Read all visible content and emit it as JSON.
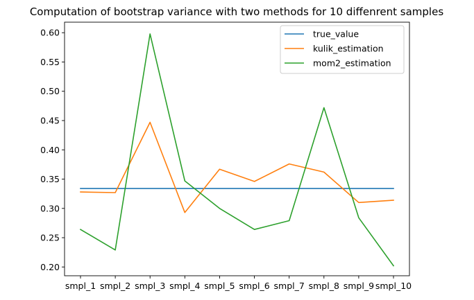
{
  "chart_data": {
    "type": "line",
    "title": "Computation of bootstrap variance with two methods for 10 diffenrent samples",
    "xlabel": "",
    "ylabel": "",
    "categories": [
      "smpl_1",
      "smpl_2",
      "smpl_3",
      "smpl_4",
      "smpl_5",
      "smpl_6",
      "smpl_7",
      "smpl_8",
      "smpl_9",
      "smpl_10"
    ],
    "ylim": [
      0.185,
      0.618
    ],
    "yticks": [
      0.2,
      0.25,
      0.3,
      0.35,
      0.4,
      0.45,
      0.5,
      0.55,
      0.6
    ],
    "ytick_labels": [
      "0.20",
      "0.25",
      "0.30",
      "0.35",
      "0.40",
      "0.45",
      "0.50",
      "0.55",
      "0.60"
    ],
    "grid": false,
    "legend_position": "top-right",
    "series": [
      {
        "name": "true_value",
        "color": "#1f77b4",
        "values": [
          0.334,
          0.334,
          0.334,
          0.334,
          0.334,
          0.334,
          0.334,
          0.334,
          0.334,
          0.334
        ]
      },
      {
        "name": "kulik_estimation",
        "color": "#ff7f0e",
        "values": [
          0.328,
          0.327,
          0.447,
          0.293,
          0.367,
          0.346,
          0.376,
          0.362,
          0.31,
          0.314
        ]
      },
      {
        "name": "mom2_estimation",
        "color": "#2ca02c",
        "values": [
          0.264,
          0.229,
          0.598,
          0.347,
          0.3,
          0.264,
          0.279,
          0.472,
          0.284,
          0.202
        ]
      }
    ]
  }
}
